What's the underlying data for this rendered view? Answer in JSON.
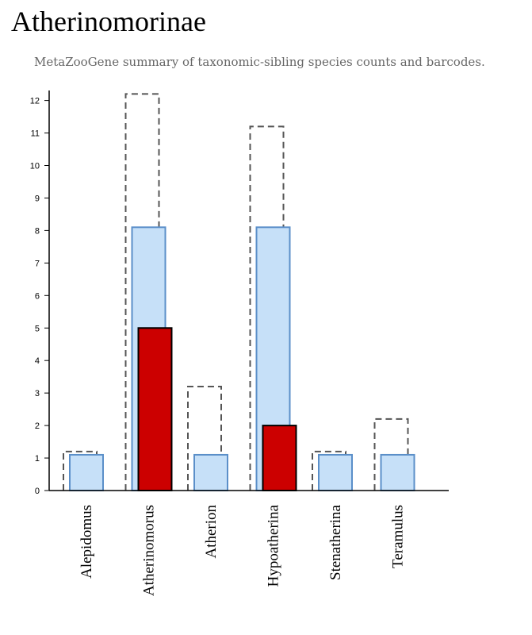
{
  "title": "Atherinomorinae",
  "subtitle": "MetaZooGene summary of taxonomic-sibling species counts and barcodes.",
  "colors": {
    "outline_series": "#555555",
    "light_series_fill": "#c6e0f8",
    "light_series_stroke": "#5b8fc9",
    "dark_series_fill": "#cc0000",
    "dark_series_stroke": "#000000",
    "axis": "#000000"
  },
  "chart_data": {
    "type": "bar",
    "categories": [
      "Alepidomus",
      "Atherinomorus",
      "Atherion",
      "Hypoatherina",
      "Stenatherina",
      "Teramulus"
    ],
    "series": [
      {
        "style": "dashed-outline",
        "values": [
          1.2,
          12.2,
          3.2,
          11.2,
          1.2,
          2.2
        ]
      },
      {
        "style": "light-blue",
        "values": [
          1.1,
          8.1,
          1.1,
          8.1,
          1.1,
          1.1
        ]
      },
      {
        "style": "red",
        "values": [
          0,
          5,
          0,
          2,
          0,
          0
        ]
      }
    ],
    "yticks": [
      0,
      1,
      2,
      3,
      4,
      5,
      6,
      7,
      8,
      9,
      10,
      11,
      12
    ],
    "ylim": [
      0,
      12.3
    ],
    "grid": false,
    "legend": "none"
  }
}
